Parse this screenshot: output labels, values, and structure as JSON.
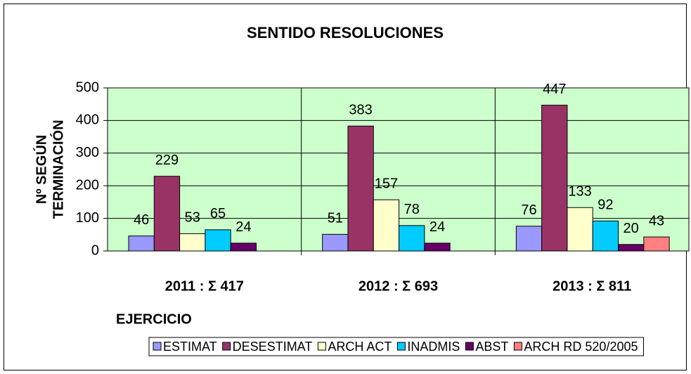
{
  "chart_data": {
    "type": "bar",
    "title": "SENTIDO RESOLUCIONES",
    "xlabel": "EJERCICIO",
    "ylabel": [
      "Nº SEGÚN",
      "TERMINACIÓN"
    ],
    "categories": [
      "2011 : Σ 417",
      "2012 : Σ 693",
      "2013 : Σ 811"
    ],
    "series": [
      {
        "name": "ESTIMAT",
        "color": "#9999ff",
        "values": [
          46,
          51,
          76
        ]
      },
      {
        "name": "DESESTIMAT",
        "color": "#993366",
        "values": [
          229,
          383,
          447
        ]
      },
      {
        "name": "ARCH ACT",
        "color": "#ffffcc",
        "values": [
          53,
          157,
          133
        ]
      },
      {
        "name": "INADMIS",
        "color": "#00ccff",
        "values": [
          65,
          78,
          92
        ]
      },
      {
        "name": "ABST",
        "color": "#660066",
        "values": [
          24,
          24,
          20
        ]
      },
      {
        "name": "ARCH RD 520/2005",
        "color": "#ff8080",
        "values": [
          null,
          null,
          43
        ]
      }
    ],
    "ylim": [
      0,
      500
    ],
    "yticks": [
      0,
      100,
      200,
      300,
      400,
      500
    ],
    "grid": true,
    "plot_background": "#ccffcc",
    "legend": "bottom"
  }
}
